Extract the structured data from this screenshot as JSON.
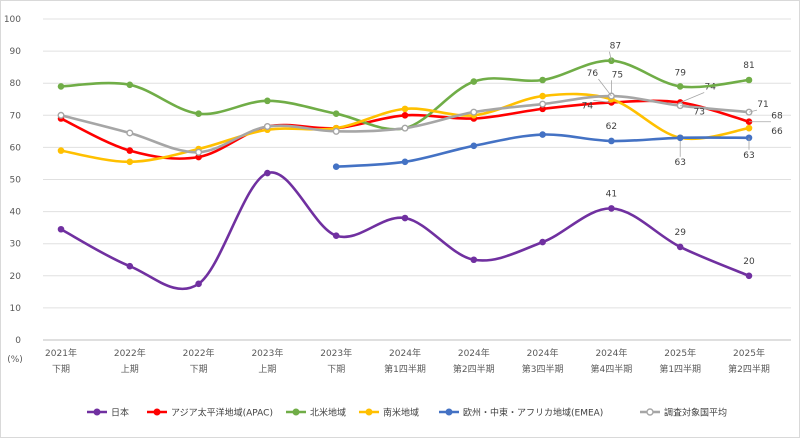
{
  "chart_data": {
    "type": "line",
    "unit_label": "(%)",
    "ylim": [
      0,
      100
    ],
    "yticks": [
      0,
      10,
      20,
      30,
      40,
      50,
      60,
      70,
      80,
      90,
      100
    ],
    "grid": true,
    "smooth": true,
    "legend_position": "bottom",
    "categories": [
      [
        "2021年",
        "下期"
      ],
      [
        "2022年",
        "上期"
      ],
      [
        "2022年",
        "下期"
      ],
      [
        "2023年",
        "上期"
      ],
      [
        "2023年",
        "下期"
      ],
      [
        "2024年",
        "第1四半期"
      ],
      [
        "2024年",
        "第2四半期"
      ],
      [
        "2024年",
        "第3四半期"
      ],
      [
        "2024年",
        "第4四半期"
      ],
      [
        "2025年",
        "第1四半期"
      ],
      [
        "2025年",
        "第2四半期"
      ]
    ],
    "series": [
      {
        "name": "日本",
        "color": "#7030a0",
        "values": [
          34.5,
          23,
          17.5,
          52,
          32.5,
          38,
          25,
          30.5,
          41,
          29,
          20
        ],
        "labels": {
          "8": "41",
          "9": "29",
          "10": "20"
        }
      },
      {
        "name": "アジア太平洋地域(APAC)",
        "color": "#ff0000",
        "values": [
          69,
          59,
          57,
          66.5,
          66,
          70,
          69,
          72,
          74,
          74,
          68
        ],
        "labels": {
          "8": "74",
          "9": "74",
          "10": "68"
        }
      },
      {
        "name": "北米地域",
        "color": "#70ad47",
        "values": [
          79,
          79.5,
          70.5,
          74.5,
          70.5,
          66,
          80.5,
          81,
          87,
          79,
          81
        ],
        "labels": {
          "8": "87",
          "9": "79",
          "10": "81"
        }
      },
      {
        "name": "南米地域",
        "color": "#ffc000",
        "values": [
          59,
          55.5,
          59.5,
          65.5,
          66,
          72,
          70,
          76,
          75,
          63,
          66
        ],
        "labels": {
          "8": "75",
          "9": "63",
          "10": "66"
        }
      },
      {
        "name": "欧州・中東・アフリカ地域(EMEA)",
        "color": "#4472c4",
        "values": [
          null,
          null,
          null,
          null,
          54,
          55.5,
          60.5,
          64,
          62,
          63,
          63
        ],
        "labels": {
          "8": "62",
          "10": "63"
        }
      },
      {
        "name": "調査対象国平均",
        "color": "#a6a6a6",
        "values": [
          70,
          64.5,
          58.5,
          66.5,
          65,
          66,
          71,
          73.5,
          76,
          73,
          71
        ],
        "labels": {
          "8": "76",
          "9": "73",
          "10": "71"
        }
      }
    ]
  }
}
